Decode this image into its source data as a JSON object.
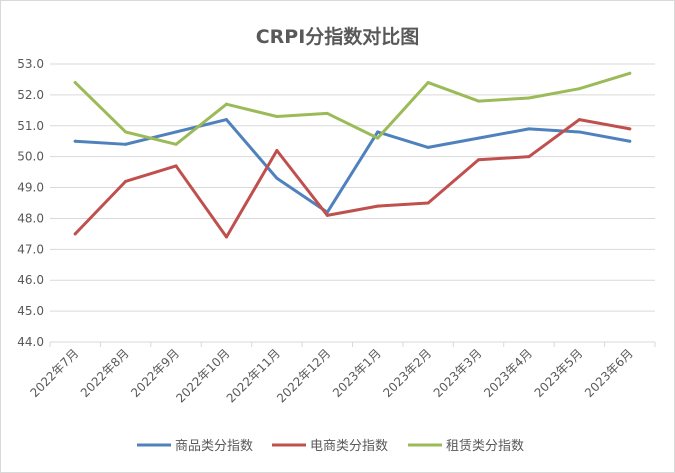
{
  "chart_data": {
    "type": "line",
    "title": "CRPI分指数对比图",
    "categories": [
      "2022年7月",
      "2022年8月",
      "2022年9月",
      "2022年10月",
      "2022年11月",
      "2022年12月",
      "2023年1月",
      "2023年2月",
      "2023年3月",
      "2023年4月",
      "2023年5月",
      "2023年6月"
    ],
    "series": [
      {
        "name": "商品类分指数",
        "color": "#4f81bd",
        "values": [
          50.5,
          50.4,
          50.8,
          51.2,
          49.3,
          48.2,
          50.8,
          50.3,
          50.6,
          50.9,
          50.8,
          50.5
        ]
      },
      {
        "name": "电商类分指数",
        "color": "#c0504d",
        "values": [
          47.5,
          49.2,
          49.7,
          47.4,
          50.2,
          48.1,
          48.4,
          48.5,
          49.9,
          50.0,
          51.2,
          50.9
        ]
      },
      {
        "name": "租赁类分指数",
        "color": "#9bbb59",
        "values": [
          52.4,
          50.8,
          50.4,
          51.7,
          51.3,
          51.4,
          50.6,
          52.4,
          51.8,
          51.9,
          52.2,
          52.7
        ]
      }
    ],
    "ylim": [
      44.0,
      53.0
    ],
    "yticks": [
      "44.0",
      "45.0",
      "46.0",
      "47.0",
      "48.0",
      "49.0",
      "50.0",
      "51.0",
      "52.0",
      "53.0"
    ],
    "grid": true,
    "legend_position": "bottom"
  }
}
